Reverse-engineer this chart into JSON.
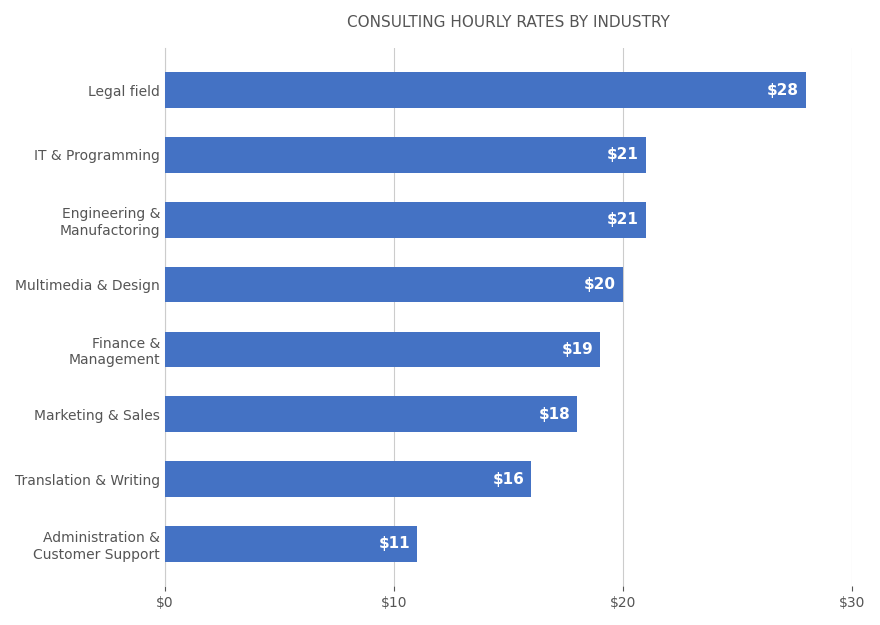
{
  "title": "CONSULTING HOURLY RATES BY INDUSTRY",
  "categories": [
    "Administration &\nCustomer Support",
    "Translation & Writing",
    "Marketing & Sales",
    "Finance &\nManagement",
    "Multimedia & Design",
    "Engineering &\nManufactoring",
    "IT & Programming",
    "Legal field"
  ],
  "values": [
    11,
    16,
    18,
    19,
    20,
    21,
    21,
    28
  ],
  "bar_color": "#4472C4",
  "label_color": "#ffffff",
  "background_color": "#ffffff",
  "grid_color": "#cccccc",
  "tick_label_color": "#555555",
  "title_color": "#555555",
  "xlim": [
    0,
    30
  ],
  "xticks": [
    0,
    10,
    20,
    30
  ],
  "bar_height": 0.55,
  "title_fontsize": 11,
  "tick_fontsize": 10,
  "label_fontsize": 11,
  "ylabel_fontsize": 10
}
